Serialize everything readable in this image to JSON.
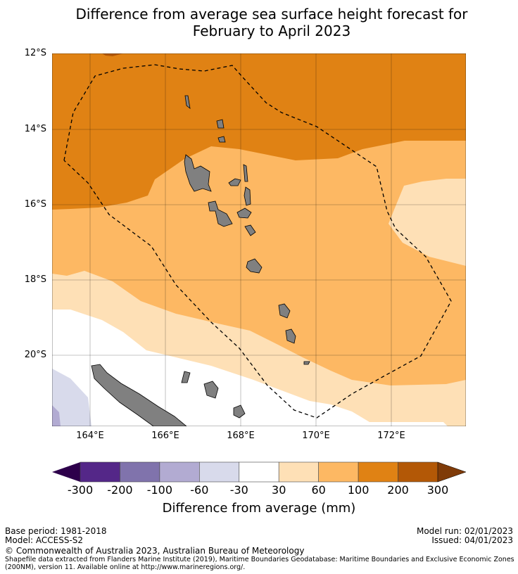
{
  "title_line1": "Difference from average sea surface height forecast for",
  "title_line2": "February to April 2023",
  "map": {
    "lat_labels": [
      "12°S",
      "14°S",
      "16°S",
      "18°S",
      "20°S"
    ],
    "lon_labels": [
      "164°E",
      "166°E",
      "168°E",
      "170°E",
      "172°E"
    ],
    "land_color": "#808080",
    "eez_boundary": "dashed"
  },
  "colorbar": {
    "label": "Difference from average (mm)",
    "ticks": [
      "-300",
      "-200",
      "-100",
      "-60",
      "-30",
      "30",
      "60",
      "100",
      "200",
      "300"
    ],
    "under_color": "#2d004b",
    "over_color": "#7f3b08",
    "bins": [
      {
        "range": "-300 to -200",
        "color": "#542788"
      },
      {
        "range": "-200 to -100",
        "color": "#8073ac"
      },
      {
        "range": "-100 to -60",
        "color": "#b2abd2"
      },
      {
        "range": "-60 to -30",
        "color": "#d8daeb"
      },
      {
        "range": "-30 to 30",
        "color": "#ffffff"
      },
      {
        "range": "30 to 60",
        "color": "#fee0b6"
      },
      {
        "range": "60 to 100",
        "color": "#fdb863"
      },
      {
        "range": "100 to 200",
        "color": "#e08214"
      },
      {
        "range": "200 to 300",
        "color": "#b35806"
      }
    ]
  },
  "footer": {
    "base_period": "Base period: 1981-2018",
    "model": "Model: ACCESS-S2",
    "model_run": "Model run: 02/01/2023",
    "issued": "Issued: 04/01/2023",
    "copyright": "© Commonwealth of Australia 2023, Australian Bureau of Meteorology",
    "shapefile_line1": "Shapefile data extracted from Flanders Marine Institute (2019), Maritime Boundaries Geodatabase: Maritime Boundaries and Exclusive Economic Zones",
    "shapefile_line2": "(200NM), version 11. Available online at http://www.marineregions.org/."
  }
}
